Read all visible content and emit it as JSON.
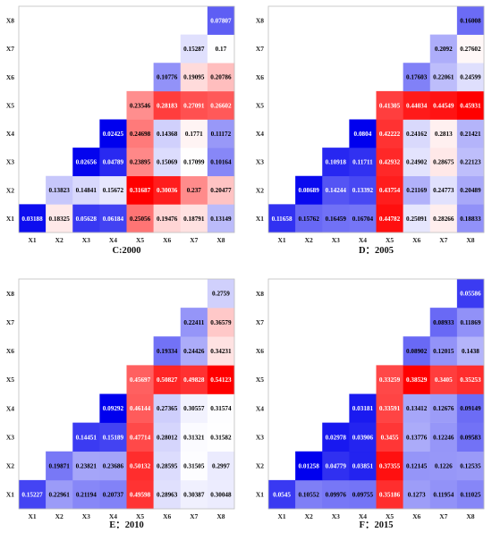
{
  "chart_data": [
    {
      "type": "heatmap",
      "title": "C:2000",
      "x_categories": [
        "X1",
        "X2",
        "X3",
        "X4",
        "X5",
        "X6",
        "X7",
        "X8"
      ],
      "y_categories": [
        "X1",
        "X2",
        "X3",
        "X4",
        "X5",
        "X6",
        "X7",
        "X8"
      ],
      "matrix": [
        [
          "0.03188",
          "0.18325",
          "0.05628",
          "0.06184",
          "0.25056",
          "0.19476",
          "0.18791",
          "0.13149"
        ],
        [
          null,
          "0.13823",
          "0.14841",
          "0.15672",
          "0.31687",
          "0.30036",
          "0.237",
          "0.20477"
        ],
        [
          null,
          null,
          "0.02656",
          "0.04789",
          "0.23895",
          "0.15069",
          "0.17099",
          "0.10164"
        ],
        [
          null,
          null,
          null,
          "0.02425",
          "0.24698",
          "0.14368",
          "0.1771",
          "0.11172"
        ],
        [
          null,
          null,
          null,
          null,
          "0.23546",
          "0.28183",
          "0.27091",
          "0.26602"
        ],
        [
          null,
          null,
          null,
          null,
          null,
          "0.10776",
          "0.19095",
          "0.20786"
        ],
        [
          null,
          null,
          null,
          null,
          null,
          null,
          "0.15287",
          "0.17"
        ],
        [
          null,
          null,
          null,
          null,
          null,
          null,
          null,
          "0.07807"
        ]
      ]
    },
    {
      "type": "heatmap",
      "title": "D：2005",
      "x_categories": [
        "X1",
        "X2",
        "X3",
        "X4",
        "X5",
        "X6",
        "X7",
        "X8"
      ],
      "y_categories": [
        "X1",
        "X2",
        "X3",
        "X4",
        "X5",
        "X6",
        "X7",
        "X8"
      ],
      "matrix": [
        [
          "0.11658",
          "0.15762",
          "0.16459",
          "0.16704",
          "0.44782",
          "0.25091",
          "0.28266",
          "0.18833"
        ],
        [
          null,
          "0.08689",
          "0.14244",
          "0.13392",
          "0.43754",
          "0.21169",
          "0.24773",
          "0.20489"
        ],
        [
          null,
          null,
          "0.10918",
          "0.11711",
          "0.42932",
          "0.24902",
          "0.28675",
          "0.22123"
        ],
        [
          null,
          null,
          null,
          "0.0804",
          "0.42222",
          "0.24162",
          "0.2813",
          "0.21421"
        ],
        [
          null,
          null,
          null,
          null,
          "0.41305",
          "0.44034",
          "0.44549",
          "0.45931"
        ],
        [
          null,
          null,
          null,
          null,
          null,
          "0.17603",
          "0.22061",
          "0.24599"
        ],
        [
          null,
          null,
          null,
          null,
          null,
          null,
          "0.2092",
          "0.27602"
        ],
        [
          null,
          null,
          null,
          null,
          null,
          null,
          null,
          "0.16008"
        ]
      ]
    },
    {
      "type": "heatmap",
      "title": "E：2010",
      "x_categories": [
        "X1",
        "X2",
        "X3",
        "X4",
        "X5",
        "X6",
        "X7",
        "X8"
      ],
      "y_categories": [
        "X1",
        "X2",
        "X3",
        "X4",
        "X5",
        "X6",
        "X7",
        "X8"
      ],
      "matrix": [
        [
          "0.15227",
          "0.22961",
          "0.21194",
          "0.20737",
          "0.49598",
          "0.28963",
          "0.30387",
          "0.30048"
        ],
        [
          null,
          "0.19871",
          "0.23821",
          "0.23686",
          "0.50132",
          "0.28595",
          "0.31505",
          "0.2997"
        ],
        [
          null,
          null,
          "0.14451",
          "0.15189",
          "0.47714",
          "0.28012",
          "0.31321",
          "0.31582"
        ],
        [
          null,
          null,
          null,
          "0.09292",
          "0.46144",
          "0.27365",
          "0.30557",
          "0.31574"
        ],
        [
          null,
          null,
          null,
          null,
          "0.45697",
          "0.50827",
          "0.49828",
          "0.54123"
        ],
        [
          null,
          null,
          null,
          null,
          null,
          "0.19334",
          "0.24426",
          "0.34231"
        ],
        [
          null,
          null,
          null,
          null,
          null,
          null,
          "0.22411",
          "0.36579"
        ],
        [
          null,
          null,
          null,
          null,
          null,
          null,
          null,
          "0.2759"
        ]
      ]
    },
    {
      "type": "heatmap",
      "title": "F：2015",
      "x_categories": [
        "X1",
        "X2",
        "X3",
        "X4",
        "X5",
        "X6",
        "X7",
        "X8"
      ],
      "y_categories": [
        "X1",
        "X2",
        "X3",
        "X4",
        "X5",
        "X6",
        "X7",
        "X8"
      ],
      "matrix": [
        [
          "0.0545",
          "0.10552",
          "0.09976",
          "0.09755",
          "0.35186",
          "0.1273",
          "0.11954",
          "0.11025"
        ],
        [
          null,
          "0.01258",
          "0.04779",
          "0.03851",
          "0.37355",
          "0.12145",
          "0.1226",
          "0.12535"
        ],
        [
          null,
          null,
          "0.02978",
          "0.03906",
          "0.3455",
          "0.13776",
          "0.12246",
          "0.09583"
        ],
        [
          null,
          null,
          null,
          "0.03181",
          "0.33591",
          "0.13412",
          "0.12676",
          "0.09149"
        ],
        [
          null,
          null,
          null,
          null,
          "0.33259",
          "0.38529",
          "0.3405",
          "0.35253"
        ],
        [
          null,
          null,
          null,
          null,
          null,
          "0.08902",
          "0.12015",
          "0.1438"
        ],
        [
          null,
          null,
          null,
          null,
          null,
          null,
          "0.08933",
          "0.11869"
        ],
        [
          null,
          null,
          null,
          null,
          null,
          null,
          null,
          "0.05586"
        ]
      ]
    }
  ],
  "colors": {
    "low": "#0000ee",
    "mid": "#ffffff",
    "high": "#ff0000",
    "text_dark": "#000000",
    "text_light": "#ffffff"
  }
}
